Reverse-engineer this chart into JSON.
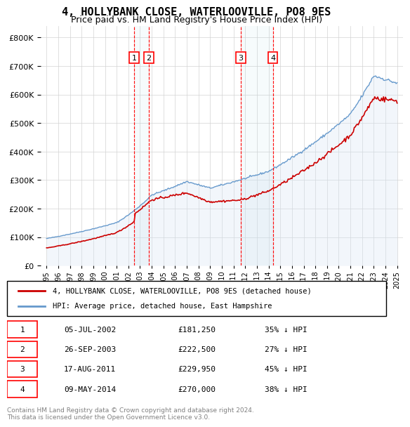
{
  "title": "4, HOLLYBANK CLOSE, WATERLOOVILLE, PO8 9ES",
  "subtitle": "Price paid vs. HM Land Registry's House Price Index (HPI)",
  "legend_line1": "4, HOLLYBANK CLOSE, WATERLOOVILLE, PO8 9ES (detached house)",
  "legend_line2": "HPI: Average price, detached house, East Hampshire",
  "footer1": "Contains HM Land Registry data © Crown copyright and database right 2024.",
  "footer2": "This data is licensed under the Open Government Licence v3.0.",
  "sale_color": "#cc0000",
  "hpi_color": "#6699cc",
  "hpi_fill_color": "#d6e4f5",
  "marker_color": "#cc0000",
  "marker_bg": "#ffffff",
  "sales": [
    {
      "label": "1",
      "date_num": 2002.51,
      "price": 181250
    },
    {
      "label": "2",
      "date_num": 2003.74,
      "price": 222500
    },
    {
      "label": "3",
      "date_num": 2011.63,
      "price": 229950
    },
    {
      "label": "4",
      "date_num": 2014.36,
      "price": 270000
    }
  ],
  "table_rows": [
    {
      "num": "1",
      "date": "05-JUL-2002",
      "price": "£181,250",
      "pct": "35% ↓ HPI"
    },
    {
      "num": "2",
      "date": "26-SEP-2003",
      "price": "£222,500",
      "pct": "27% ↓ HPI"
    },
    {
      "num": "3",
      "date": "17-AUG-2011",
      "price": "£229,950",
      "pct": "45% ↓ HPI"
    },
    {
      "num": "4",
      "date": "09-MAY-2014",
      "price": "£270,000",
      "pct": "38% ↓ HPI"
    }
  ],
  "ylim": [
    0,
    840000
  ],
  "yticks": [
    0,
    100000,
    200000,
    300000,
    400000,
    500000,
    600000,
    700000,
    800000
  ],
  "xlim": [
    1994.5,
    2025.5
  ],
  "xtick_years": [
    1995,
    1996,
    1997,
    1998,
    1999,
    2000,
    2001,
    2002,
    2003,
    2004,
    2005,
    2006,
    2007,
    2008,
    2009,
    2010,
    2011,
    2012,
    2013,
    2014,
    2015,
    2016,
    2017,
    2018,
    2019,
    2020,
    2021,
    2022,
    2023,
    2024,
    2025
  ]
}
